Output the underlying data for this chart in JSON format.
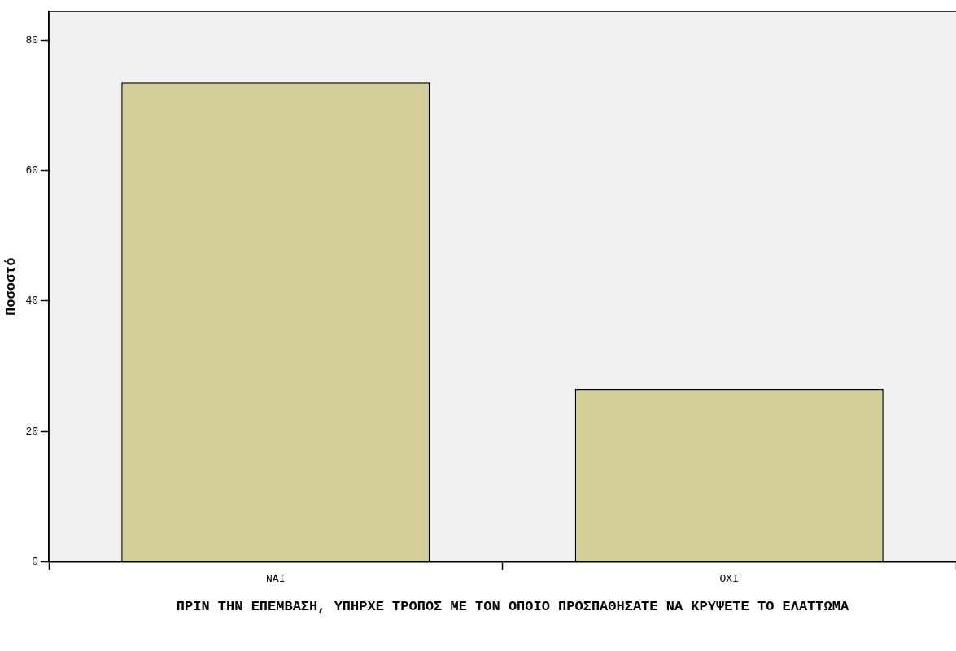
{
  "chart_data": {
    "type": "bar",
    "xlabel": "ΠΡΙΝ ΤΗΝ ΕΠΕΜΒΑΣΗ, ΥΠΗΡΧΕ ΤΡΟΠΟΣ ΜΕ ΤΟΝ ΟΠΟΙΟ ΠΡΟΣΠΑΘΗΣΑΤΕ ΝΑ ΚΡΥΨΕΤΕ ΤΟ ΕΛΑΤΤΩΜΑ",
    "ylabel": "Ποσοστό",
    "categories": [
      "ΝΑΙ",
      "ΟΧΙ"
    ],
    "values": [
      73.5,
      26.5
    ],
    "color": "#d3ce97",
    "ylim": [
      0,
      84.4
    ],
    "yticks": [
      0,
      20,
      40,
      60,
      80
    ],
    "grid": false
  }
}
